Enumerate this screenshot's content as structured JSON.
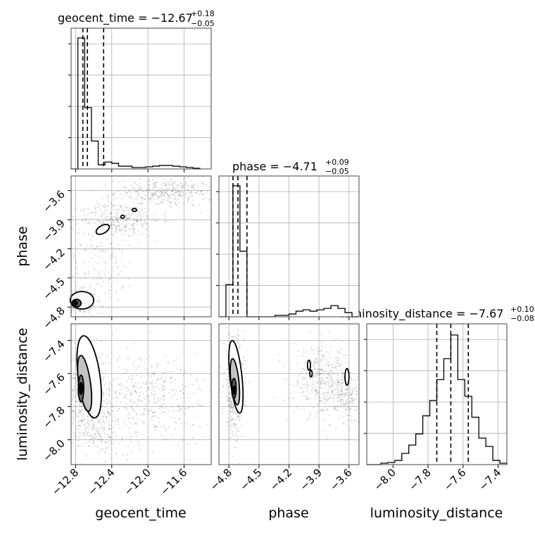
{
  "chart_data": {
    "type": "corner",
    "parameters": [
      "geocent_time",
      "phase",
      "luminosity_distance"
    ],
    "grid": true,
    "panels": {
      "geocent_time": {
        "type": "histogram",
        "title": {
          "prefix": "geocent_time = ",
          "value": "−12.67",
          "sup": "+0.18",
          "sub": "−0.05"
        },
        "xlim": [
          -12.85,
          -11.3
        ],
        "bins": [
          -12.85,
          -12.775,
          -12.7,
          -12.625,
          -12.55,
          -12.475,
          -12.4,
          -12.325,
          -12.25,
          -12.175,
          -12.1,
          -12.025,
          -11.95,
          -11.875,
          -11.8,
          -11.725,
          -11.65,
          -11.575,
          -11.5,
          -11.425
        ],
        "counts": [
          0,
          0.94,
          0.44,
          0.2,
          0.03,
          0.05,
          0.04,
          0.02,
          0.02,
          0.01,
          0.01,
          0.015,
          0.02,
          0.025,
          0.025,
          0.02,
          0.015,
          0.01,
          0.005
        ],
        "quantiles": [
          -12.72,
          -12.67,
          -12.49
        ]
      },
      "phase": {
        "type": "histogram",
        "title": {
          "prefix": "phase = ",
          "value": "−4.71",
          "sup": "+0.09",
          "sub": "−0.05"
        },
        "xlim": [
          -4.9,
          -3.5
        ],
        "bins": [
          -4.9,
          -4.83,
          -4.76,
          -4.69,
          -4.62,
          -4.55,
          -4.48,
          -4.41,
          -4.34,
          -4.27,
          -4.2,
          -4.13,
          -4.06,
          -3.99,
          -3.92,
          -3.85,
          -3.78,
          -3.71,
          -3.64,
          -3.57,
          -3.5
        ],
        "counts": [
          0,
          0.23,
          0.94,
          0.47,
          0,
          0,
          0,
          0,
          0.01,
          0.01,
          0.02,
          0.04,
          0.05,
          0.04,
          0.05,
          0.06,
          0.08,
          0.06,
          0.03,
          0
        ],
        "quantiles": [
          -4.76,
          -4.71,
          -4.62
        ]
      },
      "luminosity_distance": {
        "type": "histogram",
        "title": {
          "prefix": "luminosity_distance = ",
          "value": "−7.67",
          "sup": "+0.10",
          "sub": "−0.08"
        },
        "xlim": [
          -8.15,
          -7.35
        ],
        "bins": [
          -8.15,
          -8.11,
          -8.07,
          -8.03,
          -7.99,
          -7.95,
          -7.91,
          -7.87,
          -7.83,
          -7.79,
          -7.75,
          -7.71,
          -7.67,
          -7.63,
          -7.59,
          -7.55,
          -7.51,
          -7.47,
          -7.43,
          -7.39,
          -7.35
        ],
        "counts": [
          0,
          0,
          0.01,
          0.015,
          0.03,
          0.08,
          0.14,
          0.22,
          0.35,
          0.46,
          0.61,
          0.76,
          0.93,
          0.61,
          0.49,
          0.34,
          0.19,
          0.13,
          0.03,
          0.01
        ],
        "quantiles": [
          -7.75,
          -7.67,
          -7.57
        ]
      },
      "phase_vs_geocent_time": {
        "type": "scatter+contour",
        "xlim": [
          -12.85,
          -11.3
        ],
        "ylim": [
          -4.9,
          -3.45
        ],
        "point_clusters": [
          {
            "x": -12.78,
            "y": -4.74,
            "sx": 0.1,
            "sy": 0.06,
            "n": 420
          },
          {
            "x": -11.8,
            "y": -3.62,
            "sx": 0.28,
            "sy": 0.07,
            "n": 380
          },
          {
            "x": -12.3,
            "y": -3.9,
            "sx": 0.22,
            "sy": 0.09,
            "n": 260
          },
          {
            "x": -12.5,
            "y": -4.25,
            "sx": 0.18,
            "sy": 0.3,
            "n": 200
          }
        ],
        "contours": [
          {
            "x": -12.73,
            "y": -4.73,
            "rx": 0.13,
            "ry": 0.09,
            "fill": "#ffffff"
          },
          {
            "x": -12.79,
            "y": -4.76,
            "rx": 0.05,
            "ry": 0.04,
            "fill": "#555555"
          },
          {
            "x": -12.81,
            "y": -4.76,
            "rx": 0.03,
            "ry": 0.025,
            "fill": "#000000"
          },
          {
            "x": -12.5,
            "y": -4.0,
            "rx": 0.08,
            "ry": 0.04,
            "fill": "#ffffff",
            "angle": -30
          },
          {
            "x": -12.28,
            "y": -3.87,
            "rx": 0.02,
            "ry": 0.015,
            "fill": "#ffffff"
          },
          {
            "x": -12.15,
            "y": -3.8,
            "rx": 0.025,
            "ry": 0.015,
            "fill": "#ffffff"
          }
        ]
      },
      "luminosity_distance_vs_geocent_time": {
        "type": "scatter+contour",
        "xlim": [
          -12.85,
          -11.3
        ],
        "ylim": [
          -8.15,
          -7.3
        ],
        "point_clusters": [
          {
            "x": -12.7,
            "y": -7.7,
            "sx": 0.12,
            "sy": 0.12,
            "n": 520
          },
          {
            "x": -12.0,
            "y": -7.75,
            "sx": 0.35,
            "sy": 0.14,
            "n": 500
          },
          {
            "x": -12.55,
            "y": -7.95,
            "sx": 0.18,
            "sy": 0.08,
            "n": 180
          }
        ],
        "contours": [
          {
            "x": -12.65,
            "y": -7.62,
            "rx": 0.12,
            "ry": 0.25,
            "fill": "#ffffff",
            "angle": -8
          },
          {
            "x": -12.7,
            "y": -7.66,
            "rx": 0.065,
            "ry": 0.17,
            "fill": "#bbbbbb",
            "angle": -8
          },
          {
            "x": -12.74,
            "y": -7.69,
            "rx": 0.03,
            "ry": 0.08,
            "fill": "#666666"
          },
          {
            "x": -12.74,
            "y": -7.69,
            "rx": 0.015,
            "ry": 0.035,
            "fill": "#000000"
          }
        ]
      },
      "luminosity_distance_vs_phase": {
        "type": "scatter+contour",
        "xlim": [
          -4.9,
          -3.5
        ],
        "ylim": [
          -8.15,
          -7.3
        ],
        "point_clusters": [
          {
            "x": -4.75,
            "y": -7.68,
            "sx": 0.05,
            "sy": 0.15,
            "n": 420
          },
          {
            "x": -3.85,
            "y": -7.65,
            "sx": 0.15,
            "sy": 0.1,
            "n": 420
          },
          {
            "x": -3.6,
            "y": -7.75,
            "sx": 0.1,
            "sy": 0.08,
            "n": 200
          }
        ],
        "contours": [
          {
            "x": -4.73,
            "y": -7.62,
            "rx": 0.06,
            "ry": 0.22,
            "fill": "#ffffff",
            "angle": -6
          },
          {
            "x": -4.74,
            "y": -7.65,
            "rx": 0.04,
            "ry": 0.14,
            "fill": "#bbbbbb",
            "angle": -6
          },
          {
            "x": -4.75,
            "y": -7.69,
            "rx": 0.022,
            "ry": 0.06,
            "fill": "#555555"
          },
          {
            "x": -4.75,
            "y": -7.7,
            "rx": 0.012,
            "ry": 0.025,
            "fill": "#000000"
          },
          {
            "x": -4.0,
            "y": -7.55,
            "rx": 0.015,
            "ry": 0.03,
            "fill": "#ffffff"
          },
          {
            "x": -3.98,
            "y": -7.6,
            "rx": 0.012,
            "ry": 0.02,
            "fill": "#ffffff"
          },
          {
            "x": -3.62,
            "y": -7.62,
            "rx": 0.02,
            "ry": 0.05,
            "fill": "#ffffff"
          }
        ]
      }
    },
    "ticks": {
      "geocent_time": [
        "−12.8",
        "−12.4",
        "−12.0",
        "−11.6"
      ],
      "phase": [
        "−4.8",
        "−4.5",
        "−4.2",
        "−3.9",
        "−3.6"
      ],
      "luminosity_distance_x": [
        "−8.0",
        "−7.8",
        "−7.6",
        "−7.4"
      ],
      "phase_y": [
        "−3.6",
        "−3.9",
        "−4.2",
        "−4.5",
        "−4.8"
      ],
      "luminosity_distance_y": [
        "−7.4",
        "−7.6",
        "−7.8",
        "−8.0"
      ]
    },
    "tick_values": {
      "geocent_time": [
        -12.8,
        -12.4,
        -12.0,
        -11.6
      ],
      "phase": [
        -4.8,
        -4.5,
        -4.2,
        -3.9,
        -3.6
      ],
      "luminosity_distance_x": [
        -8.0,
        -7.8,
        -7.6,
        -7.4
      ],
      "phase_y": [
        -3.6,
        -3.9,
        -4.2,
        -4.5,
        -4.8
      ],
      "luminosity_distance_y": [
        -7.4,
        -7.6,
        -7.8,
        -8.0
      ]
    },
    "axis_labels": {
      "x1": "geocent_time",
      "x2": "phase",
      "x3": "luminosity_distance",
      "y2": "phase",
      "y3": "luminosity_distance"
    }
  }
}
